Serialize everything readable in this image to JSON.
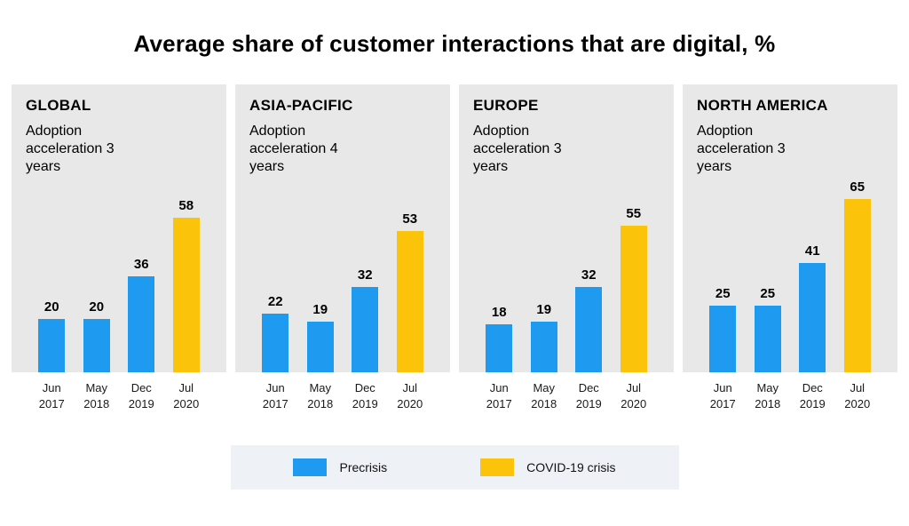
{
  "title": "Average share of customer interactions that are digital, %",
  "colors": {
    "precrisis": "#1e9bf0",
    "covid": "#fcc30b",
    "panel_bg": "#e8e8e8",
    "legend_bg": "#eef1f5"
  },
  "legend": [
    {
      "label": "Precrisis",
      "color_key": "precrisis"
    },
    {
      "label": "COVID-19 crisis",
      "color_key": "covid"
    }
  ],
  "chart_data": {
    "type": "bar",
    "unit": "%",
    "categories": [
      "Jun\n2017",
      "May\n2018",
      "Dec\n2019",
      "Jul\n2020"
    ],
    "series_colors": [
      "precrisis",
      "precrisis",
      "precrisis",
      "covid"
    ],
    "ylim": [
      0,
      70
    ],
    "title": "Average share of customer interactions that are digital, %",
    "panels": [
      {
        "title": "GLOBAL",
        "subtitle": "Adoption acceleration 3 years",
        "values": [
          20,
          20,
          36,
          58
        ]
      },
      {
        "title": "ASIA-PACIFIC",
        "subtitle": "Adoption acceleration 4 years",
        "values": [
          22,
          19,
          32,
          53
        ]
      },
      {
        "title": "EUROPE",
        "subtitle": "Adoption acceleration 3 years",
        "values": [
          18,
          19,
          32,
          55
        ]
      },
      {
        "title": "NORTH AMERICA",
        "subtitle": "Adoption acceleration 3 years",
        "values": [
          25,
          25,
          41,
          65
        ]
      }
    ]
  }
}
